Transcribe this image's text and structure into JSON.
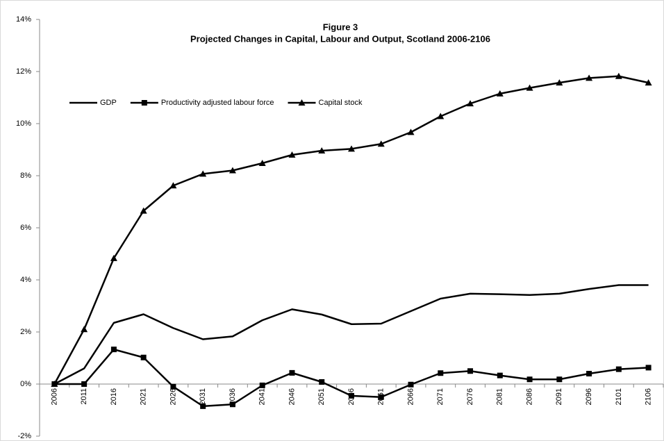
{
  "chart_data": {
    "type": "line",
    "title": "Figure 3",
    "subtitle": "Projected Changes in Capital, Labour and Output, Scotland 2006-2106",
    "categories": [
      "2006",
      "2011",
      "2016",
      "2021",
      "2026",
      "2031",
      "2036",
      "2041",
      "2046",
      "2051",
      "2056",
      "2061",
      "2066",
      "2071",
      "2076",
      "2081",
      "2086",
      "2091",
      "2096",
      "2101",
      "2106"
    ],
    "series": [
      {
        "name": "GDP",
        "color": "#000000",
        "marker": "none",
        "values": [
          0,
          0.6,
          2.35,
          2.68,
          2.15,
          1.72,
          1.83,
          2.45,
          2.87,
          2.67,
          2.3,
          2.32,
          2.8,
          3.28,
          3.47,
          3.45,
          3.42,
          3.47,
          3.65,
          3.8,
          3.8
        ]
      },
      {
        "name": "Productivity adjusted labour force",
        "color": "#000000",
        "marker": "square",
        "values": [
          0,
          0,
          1.33,
          1.02,
          -0.1,
          -0.85,
          -0.78,
          -0.05,
          0.43,
          0.08,
          -0.45,
          -0.5,
          -0.02,
          0.42,
          0.5,
          0.33,
          0.18,
          0.18,
          0.4,
          0.57,
          0.63
        ]
      },
      {
        "name": "Capital stock",
        "color": "#000000",
        "marker": "triangle",
        "values": [
          0,
          2.1,
          4.83,
          6.65,
          7.62,
          8.07,
          8.2,
          8.48,
          8.8,
          8.96,
          9.03,
          9.22,
          9.67,
          10.28,
          10.77,
          11.15,
          11.37,
          11.57,
          11.75,
          11.82,
          11.57
        ]
      }
    ],
    "ylim": [
      -2,
      14
    ],
    "yticks": [
      {
        "value": -2,
        "label": "-2%"
      },
      {
        "value": 0,
        "label": "0%"
      },
      {
        "value": 2,
        "label": "2%"
      },
      {
        "value": 4,
        "label": "4%"
      },
      {
        "value": 6,
        "label": "6%"
      },
      {
        "value": 8,
        "label": "8%"
      },
      {
        "value": 10,
        "label": "10%"
      },
      {
        "value": 12,
        "label": "12%"
      },
      {
        "value": 14,
        "label": "14%"
      }
    ],
    "grid": false,
    "legend": "top-left"
  }
}
